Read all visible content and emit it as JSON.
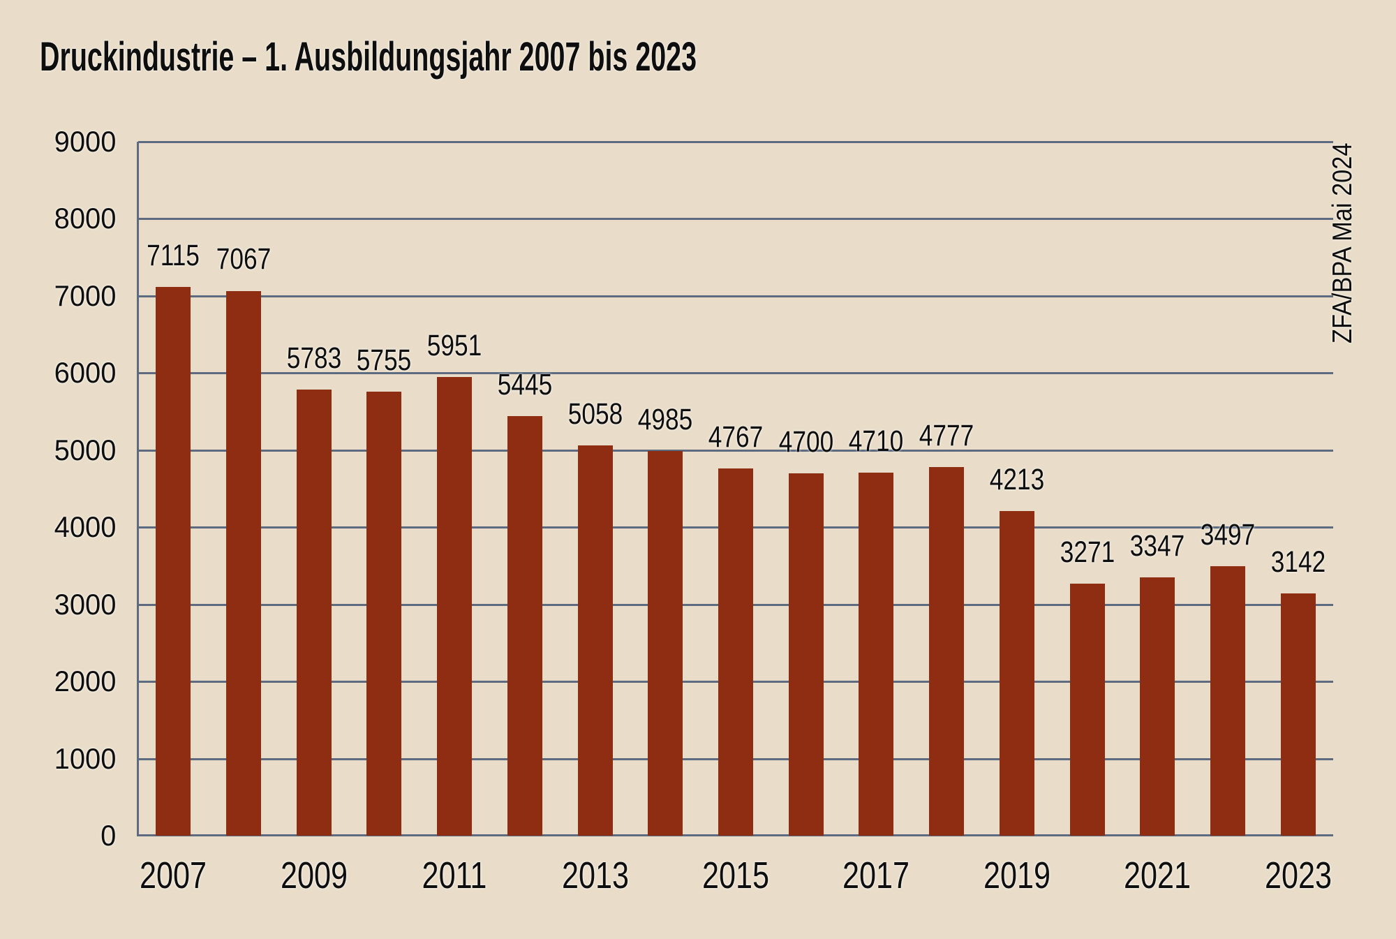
{
  "title": "Druckindustrie – 1. Ausbildungsjahr 2007 bis 2023",
  "source_note": "ZFA/BPA Mai 2024",
  "chart_data": {
    "type": "bar",
    "title": "Druckindustrie – 1. Ausbildungsjahr 2007 bis 2023",
    "categories": [
      "2007",
      "2008",
      "2009",
      "2010",
      "2011",
      "2012",
      "2013",
      "2014",
      "2015",
      "2016",
      "2017",
      "2018",
      "2019",
      "2020",
      "2021",
      "2022",
      "2023"
    ],
    "values": [
      7115,
      7067,
      5783,
      5755,
      5951,
      5445,
      5058,
      4985,
      4767,
      4700,
      4710,
      4777,
      4213,
      3271,
      3347,
      3497,
      3142
    ],
    "x_axis_tick_labels": [
      "2007",
      "2009",
      "2011",
      "2013",
      "2015",
      "2017",
      "2019",
      "2021",
      "2023"
    ],
    "y_axis_ticks": [
      0,
      1000,
      2000,
      3000,
      4000,
      5000,
      6000,
      7000,
      8000,
      9000
    ],
    "ylim": [
      0,
      9000
    ],
    "grid": true,
    "legend": "none",
    "data_labels": true,
    "annotation": "ZFA/BPA Mai 2024",
    "colors": {
      "bar": "#8E2D11",
      "background": "#E9DDC9",
      "gridline": "#5C6B80",
      "text": "#0E0E0E"
    }
  }
}
